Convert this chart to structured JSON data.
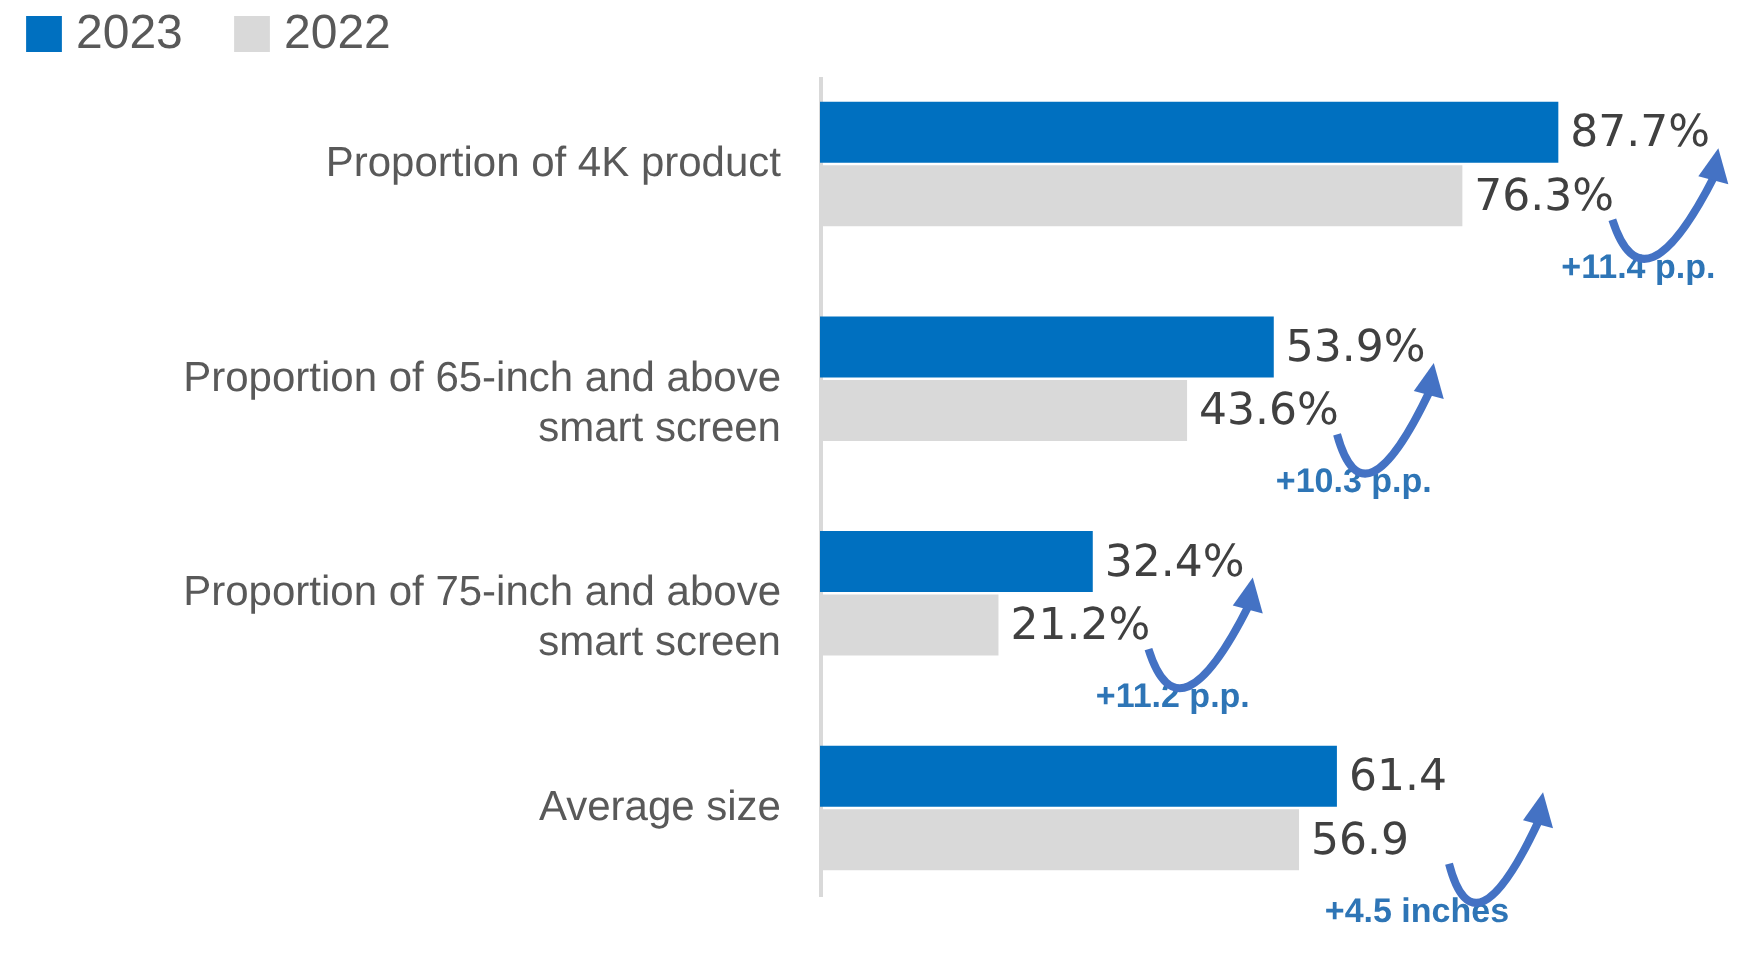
{
  "chart_data": {
    "type": "bar",
    "orientation": "horizontal",
    "categories": [
      "Proportion of 4K product",
      "Proportion of 65-inch and above smart screen",
      "Proportion of 75-inch and above smart screen",
      "Average size"
    ],
    "series": [
      {
        "name": "2023",
        "color": "#0070c0",
        "values": [
          87.7,
          53.9,
          32.4,
          61.4
        ],
        "value_labels": [
          "87.7%",
          "53.9%",
          "32.4%",
          "61.4"
        ]
      },
      {
        "name": "2022",
        "color": "#d9d9d9",
        "values": [
          76.3,
          43.6,
          21.2,
          56.9
        ],
        "value_labels": [
          "76.3%",
          "43.6%",
          "21.2%",
          "56.9"
        ]
      }
    ],
    "annotations": [
      "+11.4 p.p.",
      "+10.3 p.p.",
      "+11.2 p.p.",
      "+4.5 inches"
    ],
    "legend": "top left",
    "grid": false
  }
}
